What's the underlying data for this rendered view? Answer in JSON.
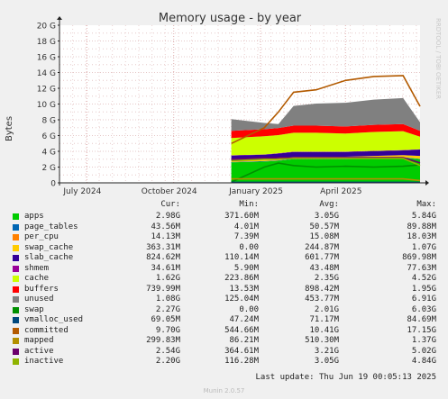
{
  "chart_data": {
    "type": "area",
    "title": "Memory usage - by year",
    "ylabel": "Bytes",
    "watermark": "RRDTOOL / TOBI OETIKER",
    "ylim": [
      0,
      20
    ],
    "y_unit": "G",
    "y_ticks": [
      "0",
      "2 G",
      "4 G",
      "6 G",
      "8 G",
      "10 G",
      "12 G",
      "14 G",
      "16 G",
      "18 G",
      "20 G"
    ],
    "y_tick_values": [
      0,
      2,
      4,
      6,
      8,
      10,
      12,
      14,
      16,
      18,
      20
    ],
    "x_ticks": [
      "July 2024",
      "October 2024",
      "January 2025",
      "April 2025"
    ],
    "x_tick_dates": [
      "2024-07-01",
      "2024-10-01",
      "2025-01-01",
      "2025-04-01"
    ],
    "x_range": [
      "2024-06-02",
      "2025-06-19"
    ],
    "data_start": "2024-12-01",
    "grid": true,
    "series_colors": {
      "apps": "#00cc00",
      "page_tables": "#0066b3",
      "per_cpu": "#ff8000",
      "swap_cache": "#ffcc00",
      "slab_cache": "#330099",
      "shmem": "#990099",
      "cache": "#ccff00",
      "buffers": "#ff0000",
      "unused": "#808080",
      "swap": "#008f00",
      "vmalloc_used": "#00487d",
      "committed": "#b35a00",
      "mapped": "#b38f00",
      "active": "#6b006b",
      "inactive": "#8fb300"
    },
    "stack_dates": [
      "2024-12-01",
      "2025-01-05",
      "2025-01-20",
      "2025-02-05",
      "2025-03-01",
      "2025-04-01",
      "2025-05-01",
      "2025-06-01",
      "2025-06-19"
    ],
    "stacked_series": [
      {
        "name": "apps",
        "color": "#00cc00",
        "values": [
          2.6,
          2.7,
          2.8,
          3.0,
          3.0,
          3.0,
          3.1,
          3.2,
          3.0
        ]
      },
      {
        "name": "page_tables",
        "color": "#0066b3",
        "values": [
          0.04,
          0.05,
          0.05,
          0.05,
          0.05,
          0.05,
          0.05,
          0.05,
          0.04
        ]
      },
      {
        "name": "per_cpu",
        "color": "#ff8000",
        "values": [
          0.015,
          0.015,
          0.015,
          0.015,
          0.015,
          0.015,
          0.015,
          0.015,
          0.014
        ]
      },
      {
        "name": "swap_cache",
        "color": "#ffcc00",
        "values": [
          0.2,
          0.2,
          0.25,
          0.25,
          0.25,
          0.25,
          0.25,
          0.25,
          0.36
        ]
      },
      {
        "name": "slab_cache",
        "color": "#330099",
        "values": [
          0.6,
          0.6,
          0.6,
          0.6,
          0.6,
          0.6,
          0.6,
          0.6,
          0.82
        ]
      },
      {
        "name": "shmem",
        "color": "#990099",
        "values": [
          0.04,
          0.04,
          0.04,
          0.04,
          0.04,
          0.04,
          0.04,
          0.04,
          0.03
        ]
      },
      {
        "name": "cache",
        "color": "#ccff00",
        "values": [
          2.2,
          2.3,
          2.3,
          2.4,
          2.4,
          2.3,
          2.4,
          2.4,
          1.6
        ]
      },
      {
        "name": "buffers",
        "color": "#ff0000",
        "values": [
          0.9,
          0.9,
          0.9,
          0.9,
          0.9,
          0.9,
          0.9,
          0.9,
          0.74
        ]
      },
      {
        "name": "unused",
        "color": "#808080",
        "values": [
          1.5,
          0.8,
          0.5,
          2.5,
          2.8,
          3.0,
          3.2,
          3.3,
          1.08
        ]
      }
    ],
    "line_series": [
      {
        "name": "swap",
        "color": "#008f00",
        "values": [
          0.1,
          2.0,
          2.5,
          2.2,
          2.0,
          2.1,
          2.0,
          2.1,
          2.27
        ]
      },
      {
        "name": "vmalloc_used",
        "color": "#00487d",
        "values": [
          0.07,
          0.07,
          0.07,
          0.07,
          0.07,
          0.07,
          0.07,
          0.07,
          0.069
        ]
      },
      {
        "name": "committed",
        "color": "#b35a00",
        "values": [
          5.0,
          7.0,
          9.0,
          11.5,
          11.8,
          13.0,
          13.5,
          13.6,
          9.7
        ]
      },
      {
        "name": "mapped",
        "color": "#b38f00",
        "values": [
          0.5,
          0.5,
          0.5,
          0.5,
          0.5,
          0.5,
          0.5,
          0.5,
          0.3
        ]
      },
      {
        "name": "active",
        "color": "#6b006b",
        "values": [
          3.0,
          3.2,
          3.2,
          3.2,
          3.2,
          3.2,
          3.2,
          3.2,
          2.54
        ]
      },
      {
        "name": "inactive",
        "color": "#8fb300",
        "values": [
          2.8,
          3.0,
          3.0,
          3.1,
          3.1,
          3.1,
          3.1,
          3.1,
          2.2
        ]
      }
    ]
  },
  "legend": {
    "headers": {
      "cur": "Cur:",
      "min": "Min:",
      "avg": "Avg:",
      "max": "Max:"
    },
    "rows": [
      {
        "name": "apps",
        "color": "#00cc00",
        "cur": "2.98G",
        "min": "371.60M",
        "avg": "3.05G",
        "max": "5.84G"
      },
      {
        "name": "page_tables",
        "color": "#0066b3",
        "cur": "43.56M",
        "min": "4.01M",
        "avg": "50.57M",
        "max": "89.88M"
      },
      {
        "name": "per_cpu",
        "color": "#ff8000",
        "cur": "14.13M",
        "min": "7.39M",
        "avg": "15.08M",
        "max": "18.03M"
      },
      {
        "name": "swap_cache",
        "color": "#ffcc00",
        "cur": "363.31M",
        "min": "0.00",
        "avg": "244.87M",
        "max": "1.07G"
      },
      {
        "name": "slab_cache",
        "color": "#330099",
        "cur": "824.62M",
        "min": "110.14M",
        "avg": "601.77M",
        "max": "869.98M"
      },
      {
        "name": "shmem",
        "color": "#990099",
        "cur": "34.61M",
        "min": "5.90M",
        "avg": "43.48M",
        "max": "77.63M"
      },
      {
        "name": "cache",
        "color": "#ccff00",
        "cur": "1.62G",
        "min": "223.86M",
        "avg": "2.35G",
        "max": "4.52G"
      },
      {
        "name": "buffers",
        "color": "#ff0000",
        "cur": "739.99M",
        "min": "13.53M",
        "avg": "898.42M",
        "max": "1.95G"
      },
      {
        "name": "unused",
        "color": "#808080",
        "cur": "1.08G",
        "min": "125.04M",
        "avg": "453.77M",
        "max": "6.91G"
      },
      {
        "name": "swap",
        "color": "#008f00",
        "cur": "2.27G",
        "min": "0.00",
        "avg": "2.01G",
        "max": "6.03G"
      },
      {
        "name": "vmalloc_used",
        "color": "#00487d",
        "cur": "69.05M",
        "min": "47.24M",
        "avg": "71.17M",
        "max": "84.69M"
      },
      {
        "name": "committed",
        "color": "#b35a00",
        "cur": "9.70G",
        "min": "544.66M",
        "avg": "10.41G",
        "max": "17.15G"
      },
      {
        "name": "mapped",
        "color": "#b38f00",
        "cur": "299.83M",
        "min": "86.21M",
        "avg": "510.30M",
        "max": "1.37G"
      },
      {
        "name": "active",
        "color": "#6b006b",
        "cur": "2.54G",
        "min": "364.61M",
        "avg": "3.21G",
        "max": "5.02G"
      },
      {
        "name": "inactive",
        "color": "#8fb300",
        "cur": "2.20G",
        "min": "116.28M",
        "avg": "3.05G",
        "max": "4.84G"
      }
    ]
  },
  "footer": {
    "last_update": "Last update: Thu Jun 19 00:05:13 2025",
    "munin_version": "Munin 2.0.57"
  }
}
